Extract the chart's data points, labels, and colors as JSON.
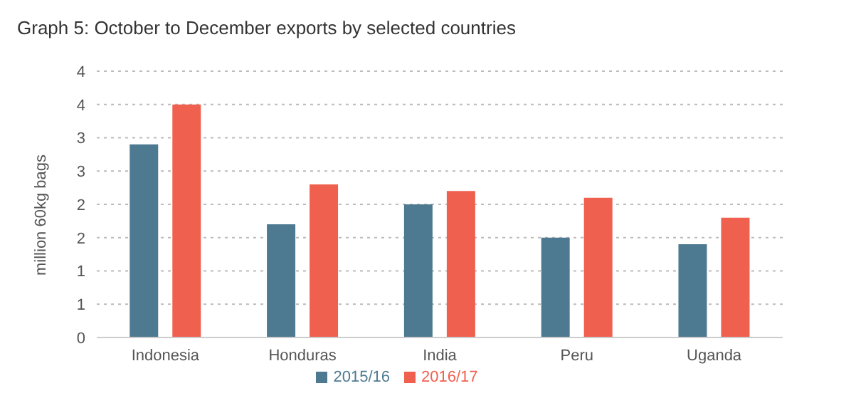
{
  "chart_data": {
    "type": "bar",
    "title": "Graph 5: October to December exports by selected countries",
    "ylabel": "million 60kg bags",
    "categories": [
      "Indonesia",
      "Honduras",
      "India",
      "Peru",
      "Uganda"
    ],
    "series": [
      {
        "name": "2015/16",
        "color": "#4e7a91",
        "values": [
          2.9,
          1.7,
          2.0,
          1.5,
          1.4
        ]
      },
      {
        "name": "2016/17",
        "color": "#f0604f",
        "values": [
          3.5,
          2.3,
          2.2,
          2.1,
          1.8
        ]
      }
    ],
    "ylim": [
      0,
      4
    ],
    "yticks": [
      0,
      {
        "value": 0.5,
        "label": "1"
      },
      1,
      {
        "value": 1.5,
        "label": "2"
      },
      2,
      {
        "value": 2.5,
        "label": "3"
      },
      3,
      {
        "value": 3.5,
        "label": "4"
      },
      4
    ],
    "grid": "y",
    "legend": "bottom"
  }
}
